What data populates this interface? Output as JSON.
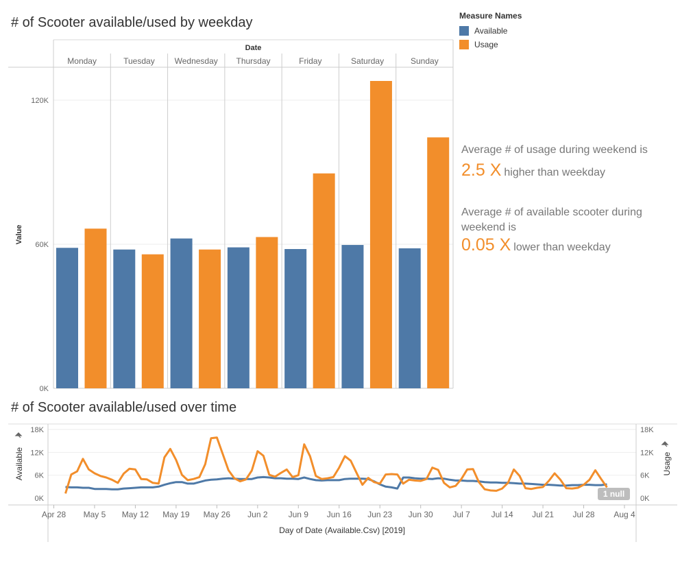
{
  "top_chart_title": "# of Scooter available/used by weekday",
  "bottom_chart_title": "# of Scooter available/used over time",
  "legend": {
    "title": "Measure Names",
    "items": [
      {
        "label": "Available",
        "color": "#4e79a7"
      },
      {
        "label": "Usage",
        "color": "#f28e2b"
      }
    ]
  },
  "annotations": {
    "weekend_usage_text": "Average # of usage during weekend is",
    "weekend_usage_value": "2.5 X",
    "weekend_usage_suffix": "higher than weekday",
    "weekend_available_text_1": "Average # of available scooter during",
    "weekend_available_text_2": "weekend is",
    "weekend_available_value": "0.05 X",
    "weekend_available_suffix": "lower than weekday"
  },
  "null_badge": "1 null",
  "chart_data": [
    {
      "type": "bar",
      "title": "# of Scooter available/used by weekday",
      "column_header": "Date",
      "ylabel": "Value",
      "ylim": [
        0,
        128000
      ],
      "yticks": [
        0,
        60000,
        120000
      ],
      "ytick_labels": [
        "0K",
        "60K",
        "120K"
      ],
      "categories": [
        "Monday",
        "Tuesday",
        "Wednesday",
        "Thursday",
        "Friday",
        "Saturday",
        "Sunday"
      ],
      "series": [
        {
          "name": "Available",
          "color": "#4e79a7",
          "values": [
            58500,
            57800,
            62400,
            58700,
            58000,
            59700,
            58300
          ]
        },
        {
          "name": "Usage",
          "color": "#f28e2b",
          "values": [
            66500,
            55800,
            57800,
            63000,
            89500,
            128000,
            104500
          ]
        }
      ],
      "grid": true
    },
    {
      "type": "line",
      "title": "# of Scooter available/used over time",
      "xlabel": "Day of Date (Available.Csv) [2019]",
      "ylabel_left": "Available",
      "ylabel_right": "Usage",
      "ylim": [
        0,
        18000
      ],
      "yticks": [
        0,
        6000,
        12000,
        18000
      ],
      "ytick_labels": [
        "0K",
        "6K",
        "12K",
        "18K"
      ],
      "xlim": [
        "2019-04-27",
        "2019-08-06"
      ],
      "xticks": [
        "2019-04-28",
        "2019-05-05",
        "2019-05-12",
        "2019-05-19",
        "2019-05-26",
        "2019-06-02",
        "2019-06-09",
        "2019-06-16",
        "2019-06-23",
        "2019-06-30",
        "2019-07-07",
        "2019-07-14",
        "2019-07-21",
        "2019-07-28",
        "2019-08-04"
      ],
      "xtick_labels": [
        "Apr 28",
        "May 5",
        "May 12",
        "May 19",
        "May 26",
        "Jun 2",
        "Jun 9",
        "Jun 16",
        "Jun 23",
        "Jun 30",
        "Jul 7",
        "Jul 14",
        "Jul 21",
        "Jul 28",
        "Aug 4"
      ],
      "x": [
        "2019-04-30",
        "2019-05-01",
        "2019-05-02",
        "2019-05-03",
        "2019-05-04",
        "2019-05-05",
        "2019-05-06",
        "2019-05-07",
        "2019-05-08",
        "2019-05-09",
        "2019-05-10",
        "2019-05-11",
        "2019-05-12",
        "2019-05-13",
        "2019-05-14",
        "2019-05-15",
        "2019-05-16",
        "2019-05-17",
        "2019-05-18",
        "2019-05-19",
        "2019-05-20",
        "2019-05-21",
        "2019-05-22",
        "2019-05-23",
        "2019-05-24",
        "2019-05-25",
        "2019-05-26",
        "2019-05-27",
        "2019-05-28",
        "2019-05-29",
        "2019-05-30",
        "2019-05-31",
        "2019-06-01",
        "2019-06-02",
        "2019-06-03",
        "2019-06-04",
        "2019-06-05",
        "2019-06-06",
        "2019-06-07",
        "2019-06-08",
        "2019-06-09",
        "2019-06-10",
        "2019-06-11",
        "2019-06-12",
        "2019-06-13",
        "2019-06-14",
        "2019-06-15",
        "2019-06-16",
        "2019-06-17",
        "2019-06-18",
        "2019-06-19",
        "2019-06-20",
        "2019-06-21",
        "2019-06-22",
        "2019-06-23",
        "2019-06-24",
        "2019-06-25",
        "2019-06-26",
        "2019-06-27",
        "2019-06-28",
        "2019-06-29",
        "2019-06-30",
        "2019-07-01",
        "2019-07-02",
        "2019-07-03",
        "2019-07-04",
        "2019-07-05",
        "2019-07-06",
        "2019-07-07",
        "2019-07-08",
        "2019-07-09",
        "2019-07-10",
        "2019-07-11",
        "2019-07-12",
        "2019-07-13",
        "2019-07-14",
        "2019-07-15",
        "2019-07-16",
        "2019-07-17",
        "2019-07-18",
        "2019-07-19",
        "2019-07-20",
        "2019-07-21",
        "2019-07-22",
        "2019-07-23",
        "2019-07-24",
        "2019-07-25",
        "2019-07-26",
        "2019-07-27",
        "2019-07-28",
        "2019-07-29",
        "2019-07-30",
        "2019-07-31",
        "2019-08-01"
      ],
      "series": [
        {
          "name": "Available",
          "axis": "left",
          "color": "#4e79a7",
          "values": [
            2900,
            2800,
            2800,
            2700,
            2700,
            2400,
            2400,
            2400,
            2300,
            2300,
            2500,
            2600,
            2700,
            2800,
            2800,
            2800,
            3000,
            3500,
            3900,
            4200,
            4200,
            3800,
            3800,
            4200,
            4600,
            4800,
            4900,
            5100,
            5200,
            5100,
            5000,
            5000,
            5000,
            5400,
            5500,
            5400,
            5200,
            5200,
            5100,
            5100,
            5000,
            5400,
            5000,
            4700,
            4600,
            4700,
            4700,
            4700,
            5000,
            5100,
            5100,
            5100,
            5000,
            4400,
            3600,
            3000,
            2800,
            2500,
            5400,
            5400,
            5200,
            5100,
            5100,
            5000,
            5200,
            5100,
            4800,
            4600,
            4600,
            4500,
            4500,
            4400,
            4200,
            4100,
            4100,
            4000,
            4000,
            3900,
            3800,
            3800,
            3700,
            3600,
            3500,
            3500,
            3400,
            3300,
            3300,
            3400,
            3400,
            3500,
            3500,
            3400,
            3400,
            3600
          ]
        },
        {
          "name": "Usage",
          "axis": "right",
          "color": "#f28e2b",
          "values": [
            1200,
            6200,
            7000,
            10300,
            7500,
            6500,
            5800,
            5400,
            4800,
            4000,
            6400,
            7700,
            7500,
            5000,
            4900,
            4000,
            3800,
            10700,
            12900,
            10000,
            6100,
            4700,
            5000,
            5500,
            8900,
            15700,
            15900,
            11600,
            7300,
            5200,
            4400,
            4900,
            7200,
            12300,
            11100,
            6100,
            5600,
            6600,
            7500,
            5500,
            6000,
            14100,
            11000,
            5800,
            5000,
            5200,
            5500,
            8000,
            11000,
            9800,
            6600,
            3500,
            5300,
            4200,
            3800,
            6200,
            6300,
            6200,
            3800,
            4800,
            4600,
            4500,
            5000,
            8000,
            7400,
            4000,
            2800,
            3200,
            5000,
            7500,
            7600,
            4200,
            2300,
            2000,
            1900,
            2500,
            4000,
            7500,
            5800,
            2600,
            2400,
            2700,
            2900,
            4500,
            6500,
            4800,
            2600,
            2500,
            2700,
            3500,
            4800,
            7300,
            5000,
            2800
          ]
        }
      ],
      "annotation": "1 null",
      "grid": true
    }
  ]
}
